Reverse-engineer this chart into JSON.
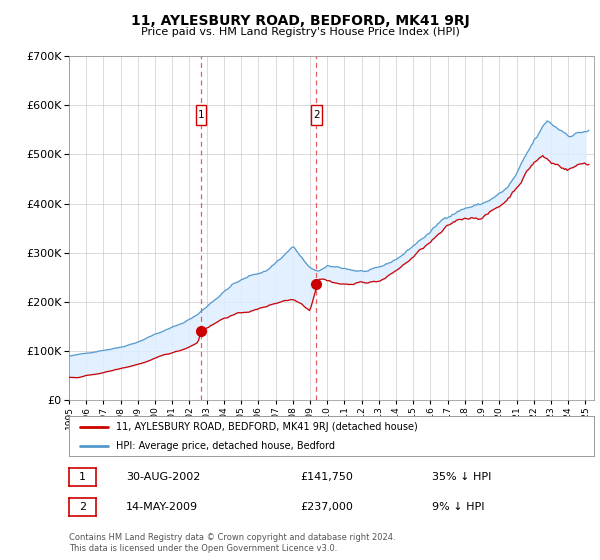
{
  "title": "11, AYLESBURY ROAD, BEDFORD, MK41 9RJ",
  "subtitle": "Price paid vs. HM Land Registry's House Price Index (HPI)",
  "footer": "Contains HM Land Registry data © Crown copyright and database right 2024.\nThis data is licensed under the Open Government Licence v3.0.",
  "legend_line1": "11, AYLESBURY ROAD, BEDFORD, MK41 9RJ (detached house)",
  "legend_line2": "HPI: Average price, detached house, Bedford",
  "purchase1_date": "30-AUG-2002",
  "purchase1_price": "£141,750",
  "purchase1_hpi": "35% ↓ HPI",
  "purchase1_year": 2002.67,
  "purchase1_value": 141750,
  "purchase2_date": "14-MAY-2009",
  "purchase2_price": "£237,000",
  "purchase2_hpi": "9% ↓ HPI",
  "purchase2_year": 2009.37,
  "purchase2_value": 237000,
  "red_color": "#cc0000",
  "blue_color": "#5599cc",
  "fill_color": "#ddeeff",
  "grid_color": "#cccccc",
  "ylim": [
    0,
    700000
  ],
  "xlim_start": 1995.0,
  "xlim_end": 2025.5,
  "background_color": "#ffffff"
}
